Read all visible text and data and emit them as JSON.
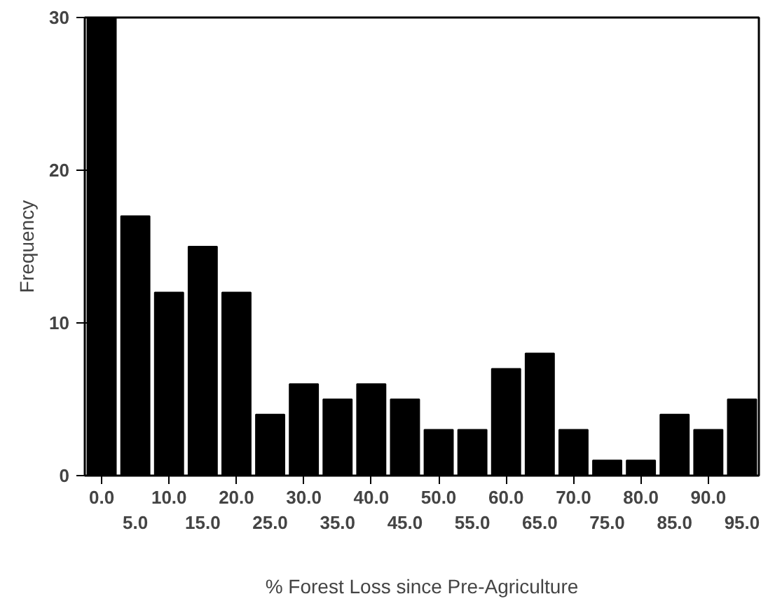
{
  "chart_data": {
    "type": "bar",
    "xlabel": "% Forest Loss since Pre-Agriculture",
    "ylabel": "Frequency",
    "categories": [
      "0.0",
      "5.0",
      "10.0",
      "15.0",
      "20.0",
      "25.0",
      "30.0",
      "35.0",
      "40.0",
      "45.0",
      "50.0",
      "55.0",
      "60.0",
      "65.0",
      "70.0",
      "75.0",
      "80.0",
      "85.0",
      "90.0",
      "95.0"
    ],
    "values": [
      30,
      17,
      12,
      15,
      12,
      4,
      6,
      5,
      6,
      5,
      3,
      3,
      7,
      8,
      3,
      1,
      1,
      4,
      3,
      5
    ],
    "color": "#000000",
    "ylim": [
      0,
      30
    ],
    "yticks": [
      0,
      10,
      20,
      30
    ],
    "grid": false
  }
}
